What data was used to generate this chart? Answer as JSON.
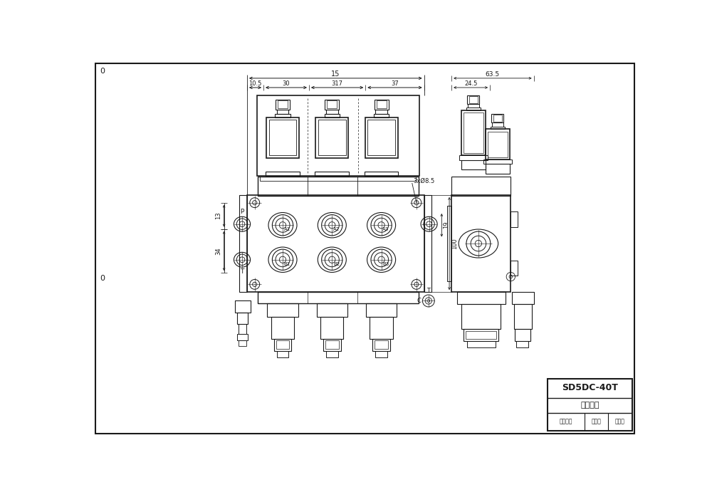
{
  "bg_color": "#ffffff",
  "line_color": "#1a1a1a",
  "title_block": {
    "model": "SD5DC-40T",
    "drawing_number_label": "图纸编号",
    "row3_col1": "设备标号",
    "row3_col2": "版本号",
    "row3_col3": "版本号"
  },
  "dim_labels": {
    "top_width": "15",
    "sub1": "10.5",
    "sub2": "30",
    "sub3": "317",
    "sub4": "37",
    "right_width": "63.5",
    "right_sub1": "24.5",
    "left_height1": "13",
    "left_height2": "34",
    "right_height1": "19",
    "right_height2": "100",
    "hole_label": "3xØ8.5"
  }
}
